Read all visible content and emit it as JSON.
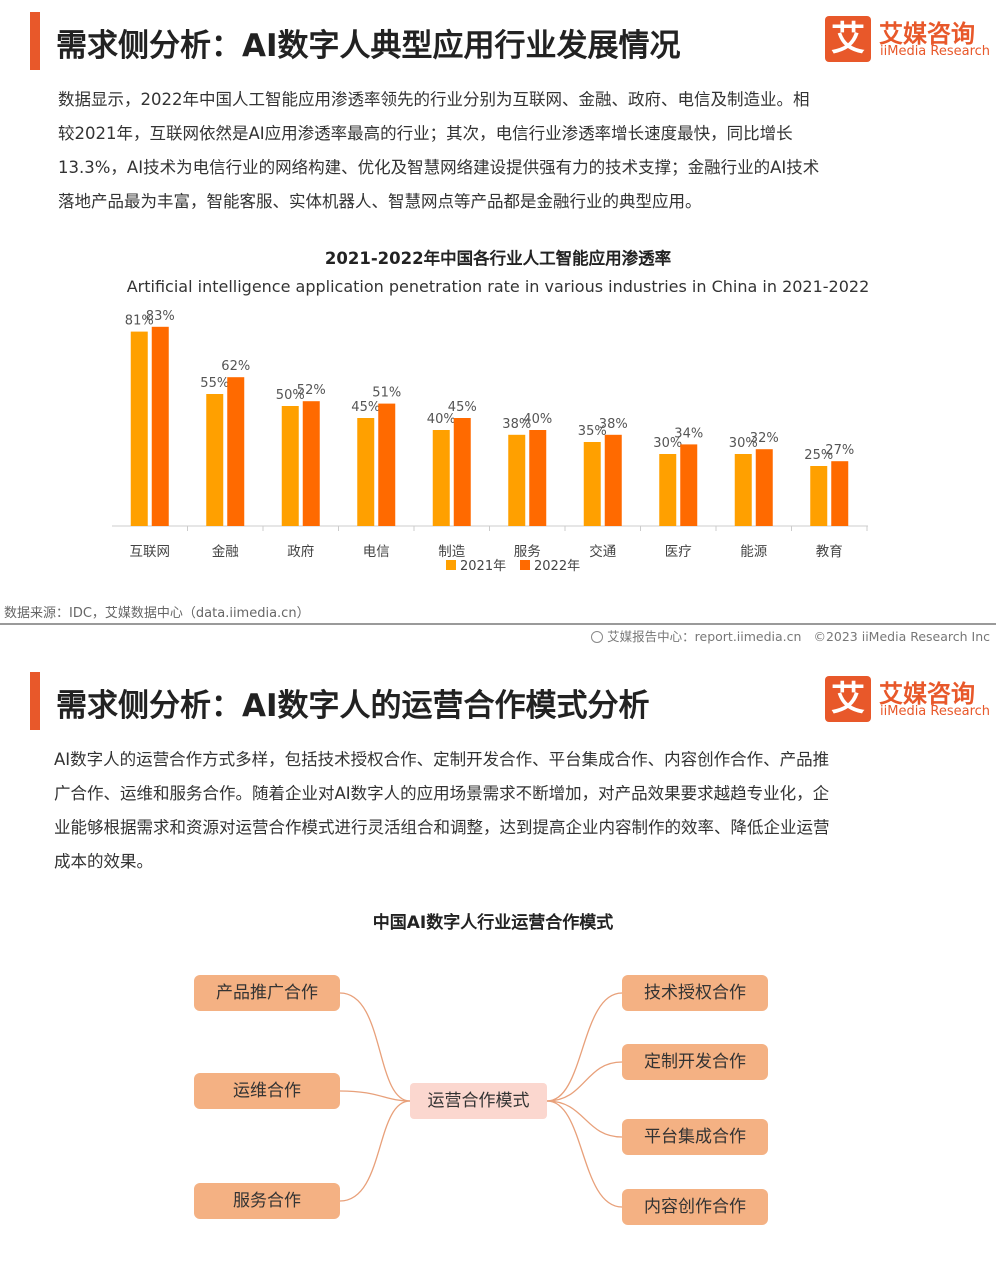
{
  "section1": {
    "title": "需求侧分析：AI数字人典型应用行业发展情况",
    "logo": {
      "cn": "艾媒咨询",
      "en": "iiMedia Research",
      "mark": "艾"
    },
    "paragraph_lines": [
      "数据显示，2022年中国人工智能应用渗透率领先的行业分别为互联网、金融、政府、电信及制造业。相",
      "较2021年，互联网依然是AI应用渗透率最高的行业；其次，电信行业渗透率增长速度最快，同比增长",
      "13.3%，AI技术为电信行业的网络构建、优化及智慧网络建设提供强有力的技术支撑；金融行业的AI技术",
      "落地产品最为丰富，智能客服、实体机器人、智慧网点等产品都是金融行业的典型应用。"
    ],
    "source": "数据来源：IDC，艾媒数据中心（data.iimedia.cn）",
    "footer": {
      "report": "艾媒报告中心：report.iimedia.cn",
      "copyright": "©2023  iiMedia Research  Inc"
    }
  },
  "chart_data": {
    "type": "bar",
    "title": "2021-2022年中国各行业人工智能应用渗透率",
    "subtitle": "Artificial intelligence application penetration rate in various industries in China in 2021-2022",
    "categories": [
      "互联网",
      "金融",
      "政府",
      "电信",
      "制造",
      "服务",
      "交通",
      "医疗",
      "能源",
      "教育"
    ],
    "series": [
      {
        "name": "2021年",
        "values": [
          81,
          55,
          50,
          45,
          40,
          38,
          35,
          30,
          30,
          25
        ],
        "color": "#ffa000"
      },
      {
        "name": "2022年",
        "values": [
          83,
          62,
          52,
          51,
          45,
          40,
          38,
          34,
          32,
          27
        ],
        "color": "#ff6a00"
      }
    ],
    "value_suffix": "%",
    "ylim": [
      0,
      100
    ],
    "grid": false,
    "legend": "bottom"
  },
  "section2": {
    "title": "需求侧分析：AI数字人的运营合作模式分析",
    "logo": {
      "cn": "艾媒咨询",
      "en": "iiMedia Research",
      "mark": "艾"
    },
    "paragraph_lines": [
      "AI数字人的运营合作方式多样，包括技术授权合作、定制开发合作、平台集成合作、内容创作合作、产品推",
      "广合作、运维和服务合作。随着企业对AI数字人的应用场景需求不断增加，对产品效果要求越趋专业化，企",
      "业能够根据需求和资源对运营合作模式进行灵活组合和调整，达到提高企业内容制作的效率、降低企业运营",
      "成本的效果。"
    ],
    "diagram": {
      "title": "中国AI数字人行业运营合作模式",
      "center": "运营合作模式",
      "left": [
        "产品推广合作",
        "运维合作",
        "服务合作"
      ],
      "right": [
        "技术授权合作",
        "定制开发合作",
        "平台集成合作",
        "内容创作合作"
      ]
    }
  }
}
